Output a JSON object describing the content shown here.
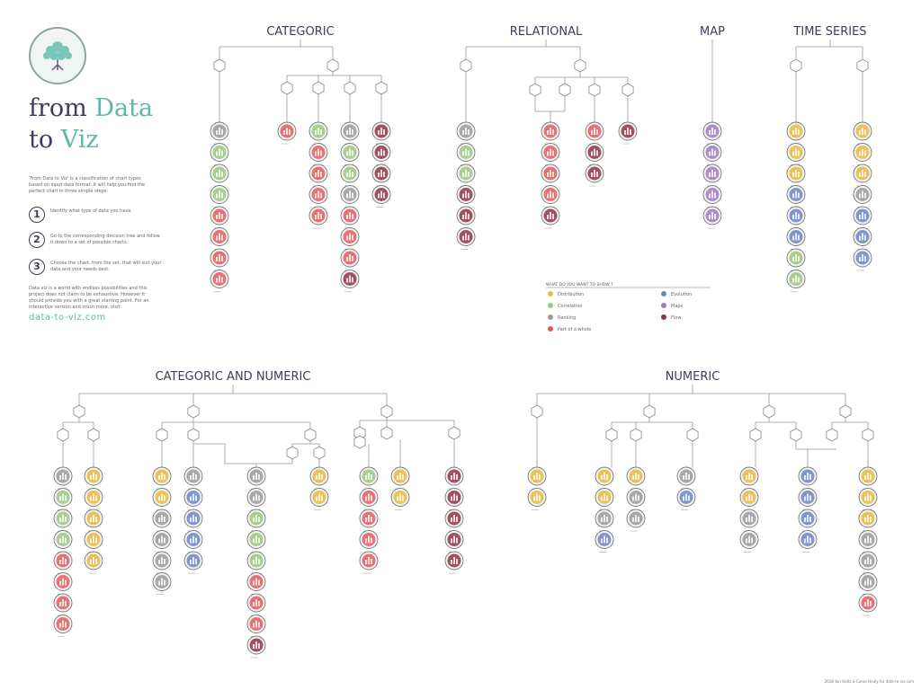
{
  "intro": {
    "title_part1": "from ",
    "title_accent1": "Data",
    "title_part2": "to ",
    "title_accent2": "Viz",
    "description": "'From Data to Viz' is a classification of chart types based on input data format. It will help you find the perfect chart in three simple steps:",
    "steps": [
      {
        "number": "1",
        "text": "Identify what type of data you have."
      },
      {
        "number": "2",
        "text": "Go to the corresponding decision tree and follow it down to a set of possible charts."
      },
      {
        "number": "3",
        "text": "Choose the chart, from the set, that will suit your data and your needs best."
      }
    ],
    "outro": "Data viz is a world with endless possibilities and this project does not claim to be exhaustive. However it should provide you with a great starting point. For an interactive version and much more, visit:",
    "url": "data-to-viz.com"
  },
  "sections": {
    "categoric": "CATEGORIC",
    "relational": "RELATIONAL",
    "map": "MAP",
    "time_series": "TIME SERIES",
    "categoric_numeric": "CATEGORIC AND NUMERIC",
    "numeric": "NUMERIC"
  },
  "legend": {
    "title": "WHAT DO YOU WANT TO SHOW ?",
    "items": [
      {
        "label": "Distribution",
        "color": "#e9b83c"
      },
      {
        "label": "Correlation",
        "color": "#9bc77c"
      },
      {
        "label": "Ranking",
        "color": "#9a9a9a"
      },
      {
        "label": "Part of a whole",
        "color": "#e4595c"
      },
      {
        "label": "Evolution",
        "color": "#6a86c4"
      },
      {
        "label": "Maps",
        "color": "#a07ac2"
      },
      {
        "label": "Flow",
        "color": "#8e3448"
      }
    ]
  },
  "footer": {
    "copyright": "2018 Yan Holtz & Conor Healy for data-to-viz.com"
  },
  "categories": {
    "distribution": "#e9b83c",
    "correlation": "#9bc77c",
    "ranking": "#9a9a9a",
    "part": "#e4595c",
    "evolution": "#6a86c4",
    "map": "#a07ac2",
    "flow": "#8e3448"
  },
  "columns": [
    {
      "id": "cat-a",
      "types": [
        "ranking",
        "correlation",
        "correlation",
        "correlation",
        "part",
        "part",
        "part",
        "part"
      ]
    },
    {
      "id": "cat-b",
      "types": [
        "part"
      ]
    },
    {
      "id": "cat-c",
      "types": [
        "correlation",
        "part",
        "part",
        "part",
        "part"
      ]
    },
    {
      "id": "cat-d",
      "types": [
        "ranking",
        "correlation",
        "correlation",
        "ranking",
        "part",
        "part",
        "part",
        "flow"
      ]
    },
    {
      "id": "cat-e",
      "types": [
        "flow",
        "flow",
        "flow",
        "flow"
      ]
    },
    {
      "id": "rel-a",
      "types": [
        "ranking",
        "correlation",
        "correlation",
        "flow",
        "flow",
        "flow"
      ]
    },
    {
      "id": "rel-b",
      "types": [
        "part",
        "part",
        "part",
        "part",
        "flow"
      ]
    },
    {
      "id": "rel-c",
      "types": [
        "part",
        "flow",
        "flow"
      ]
    },
    {
      "id": "rel-d",
      "types": [
        "flow"
      ]
    },
    {
      "id": "map-a",
      "types": [
        "map",
        "map",
        "map",
        "map",
        "map"
      ]
    },
    {
      "id": "ts-a",
      "types": [
        "distribution",
        "distribution",
        "distribution",
        "evolution",
        "evolution",
        "evolution",
        "correlation",
        "correlation"
      ]
    },
    {
      "id": "ts-b",
      "types": [
        "distribution",
        "distribution",
        "distribution",
        "ranking",
        "evolution",
        "evolution",
        "evolution"
      ]
    },
    {
      "id": "cn-a",
      "types": [
        "ranking",
        "correlation",
        "correlation",
        "correlation",
        "part",
        "part",
        "part",
        "part"
      ]
    },
    {
      "id": "cn-b",
      "types": [
        "distribution",
        "distribution",
        "distribution",
        "distribution",
        "distribution"
      ]
    },
    {
      "id": "cn-c",
      "types": [
        "distribution",
        "distribution",
        "ranking",
        "ranking",
        "ranking",
        "ranking"
      ]
    },
    {
      "id": "cn-d",
      "types": [
        "ranking",
        "evolution",
        "evolution",
        "evolution",
        "evolution"
      ]
    },
    {
      "id": "cn-e",
      "types": [
        "ranking",
        "ranking",
        "correlation",
        "correlation",
        "correlation",
        "part",
        "part",
        "part",
        "flow"
      ]
    },
    {
      "id": "cn-f",
      "types": [
        "distribution",
        "distribution"
      ]
    },
    {
      "id": "cn-g",
      "types": [
        "correlation",
        "part",
        "part",
        "part",
        "part"
      ]
    },
    {
      "id": "cn-h",
      "types": [
        "distribution",
        "distribution"
      ]
    },
    {
      "id": "cn-i",
      "types": [
        "flow",
        "flow",
        "flow",
        "flow",
        "flow"
      ]
    },
    {
      "id": "num-a",
      "types": [
        "distribution",
        "distribution"
      ]
    },
    {
      "id": "num-b",
      "types": [
        "distribution",
        "distribution",
        "ranking",
        "evolution"
      ]
    },
    {
      "id": "num-c",
      "types": [
        "distribution",
        "ranking",
        "ranking"
      ]
    },
    {
      "id": "num-d",
      "types": [
        "ranking",
        "evolution"
      ]
    },
    {
      "id": "num-e",
      "types": [
        "distribution",
        "distribution",
        "ranking",
        "ranking"
      ]
    },
    {
      "id": "num-f",
      "types": [
        "evolution",
        "evolution",
        "evolution",
        "evolution"
      ]
    },
    {
      "id": "num-g",
      "types": [
        "distribution",
        "distribution",
        "distribution",
        "ranking",
        "ranking",
        "ranking",
        "part"
      ]
    }
  ]
}
